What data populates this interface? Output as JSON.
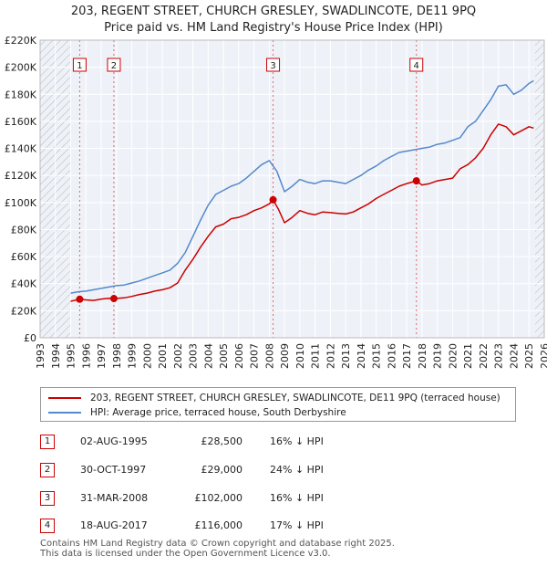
{
  "chart_data": {
    "type": "line",
    "title": "203, REGENT STREET, CHURCH GRESLEY, SWADLINCOTE, DE11 9PQ",
    "subtitle": "Price paid vs. HM Land Registry's House Price Index (HPI)",
    "xlabel": "",
    "ylabel": "",
    "xlim": [
      1993,
      2026
    ],
    "ylim": [
      0,
      220000
    ],
    "x_ticks": [
      1993,
      1994,
      1995,
      1996,
      1997,
      1998,
      1999,
      2000,
      2001,
      2002,
      2003,
      2004,
      2005,
      2006,
      2007,
      2008,
      2009,
      2010,
      2011,
      2012,
      2013,
      2014,
      2015,
      2016,
      2017,
      2018,
      2019,
      2020,
      2021,
      2022,
      2023,
      2024,
      2025,
      2026
    ],
    "y_ticks": [
      0,
      20000,
      40000,
      60000,
      80000,
      100000,
      120000,
      140000,
      160000,
      180000,
      200000,
      220000
    ],
    "y_tick_labels": [
      "£0",
      "£20K",
      "£40K",
      "£60K",
      "£80K",
      "£100K",
      "£120K",
      "£140K",
      "£160K",
      "£180K",
      "£200K",
      "£220K"
    ],
    "data_start": 1995.0,
    "data_end": 2025.4,
    "series": [
      {
        "name": "203, REGENT STREET, CHURCH GRESLEY, SWADLINCOTE, DE11 9PQ (terraced house)",
        "color": "#cc0000",
        "x": [
          1995.0,
          1995.59,
          1996.0,
          1996.5,
          1997.0,
          1997.5,
          1997.83,
          1998.5,
          1999.0,
          1999.5,
          2000.0,
          2000.5,
          2001.0,
          2001.5,
          2002.0,
          2002.5,
          2003.0,
          2003.5,
          2004.0,
          2004.5,
          2005.0,
          2005.5,
          2006.0,
          2006.5,
          2007.0,
          2007.5,
          2008.0,
          2008.25,
          2008.6,
          2009.0,
          2009.5,
          2010.0,
          2010.5,
          2011.0,
          2011.5,
          2012.0,
          2012.5,
          2013.0,
          2013.5,
          2014.0,
          2014.5,
          2015.0,
          2015.5,
          2016.0,
          2016.5,
          2017.0,
          2017.63,
          2018.0,
          2018.5,
          2019.0,
          2019.5,
          2020.0,
          2020.5,
          2021.0,
          2021.5,
          2022.0,
          2022.5,
          2023.0,
          2023.5,
          2024.0,
          2024.5,
          2025.0,
          2025.3
        ],
        "y": [
          27000,
          28500,
          28000,
          27600,
          28600,
          29200,
          29000,
          29500,
          30600,
          32000,
          33000,
          34500,
          35500,
          37000,
          40500,
          50000,
          58000,
          67000,
          75000,
          82000,
          84000,
          88000,
          89000,
          91000,
          94000,
          96000,
          99000,
          102000,
          95000,
          85000,
          89000,
          94000,
          92000,
          91000,
          93000,
          92500,
          92000,
          91500,
          93000,
          96000,
          99000,
          103000,
          106000,
          109000,
          112000,
          114000,
          116000,
          113000,
          114000,
          116000,
          117000,
          118000,
          125000,
          128000,
          133000,
          140000,
          150000,
          158000,
          156000,
          150000,
          153000,
          156000,
          155000
        ]
      },
      {
        "name": "HPI: Average price, terraced house, South Derbyshire",
        "color": "#5588cc",
        "x": [
          1995.0,
          1995.5,
          1996.0,
          1996.5,
          1997.0,
          1997.5,
          1998.0,
          1998.5,
          1999.0,
          1999.5,
          2000.0,
          2000.5,
          2001.0,
          2001.5,
          2002.0,
          2002.5,
          2003.0,
          2003.5,
          2004.0,
          2004.5,
          2005.0,
          2005.5,
          2006.0,
          2006.5,
          2007.0,
          2007.5,
          2008.0,
          2008.5,
          2009.0,
          2009.5,
          2010.0,
          2010.5,
          2011.0,
          2011.5,
          2012.0,
          2012.5,
          2013.0,
          2013.5,
          2014.0,
          2014.5,
          2015.0,
          2015.5,
          2016.0,
          2016.5,
          2017.0,
          2017.5,
          2018.0,
          2018.5,
          2019.0,
          2019.5,
          2020.0,
          2020.5,
          2021.0,
          2021.5,
          2022.0,
          2022.5,
          2023.0,
          2023.5,
          2024.0,
          2024.5,
          2025.0,
          2025.3
        ],
        "y": [
          33000,
          34000,
          34500,
          35500,
          36500,
          37500,
          38500,
          39000,
          40500,
          42000,
          44000,
          46000,
          48000,
          50000,
          55000,
          63000,
          75000,
          87000,
          98000,
          106000,
          109000,
          112000,
          114000,
          118000,
          123000,
          128000,
          131000,
          123000,
          108000,
          112000,
          117000,
          115000,
          114000,
          116000,
          116000,
          115000,
          114000,
          117000,
          120000,
          124000,
          127000,
          131000,
          134000,
          137000,
          138000,
          139000,
          140000,
          141000,
          143000,
          144000,
          146000,
          148000,
          156000,
          160000,
          168000,
          176000,
          186000,
          187000,
          180000,
          183000,
          188000,
          190000
        ]
      }
    ],
    "sales": [
      {
        "num": "1",
        "x": 1995.59,
        "date": "02-AUG-1995",
        "price": "£28,500",
        "price_value": 28500,
        "hpi": "16% ↓ HPI"
      },
      {
        "num": "2",
        "x": 1997.83,
        "date": "30-OCT-1997",
        "price": "£29,000",
        "price_value": 29000,
        "hpi": "24% ↓ HPI"
      },
      {
        "num": "3",
        "x": 2008.25,
        "date": "31-MAR-2008",
        "price": "£102,000",
        "price_value": 102000,
        "hpi": "16% ↓ HPI"
      },
      {
        "num": "4",
        "x": 2017.63,
        "date": "18-AUG-2017",
        "price": "£116,000",
        "price_value": 116000,
        "hpi": "17% ↓ HPI"
      }
    ]
  },
  "legend": {
    "property_label": "203, REGENT STREET, CHURCH GRESLEY, SWADLINCOTE, DE11 9PQ (terraced house)",
    "hpi_label": "HPI: Average price, terraced house, South Derbyshire"
  },
  "colors": {
    "property": "#cc0000",
    "hpi": "#5588cc",
    "plot_bg": "#eef2f8",
    "hatch": "#888888"
  },
  "footer": {
    "line1": "Contains HM Land Registry data © Crown copyright and database right 2025.",
    "line2": "This data is licensed under the Open Government Licence v3.0."
  }
}
